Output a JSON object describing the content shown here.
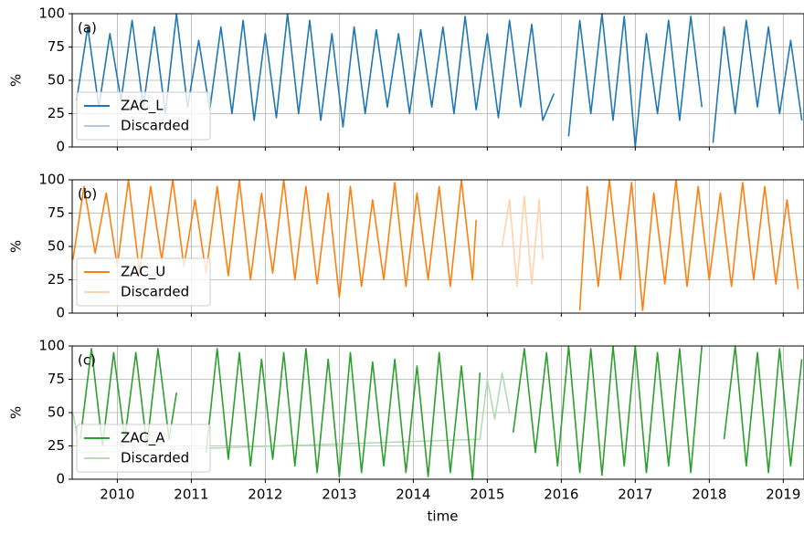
{
  "chart_data": [
    {
      "type": "line",
      "annotation": "(a)",
      "ylabel": "%",
      "xlim": [
        2009.39,
        2019.28
      ],
      "ylim": [
        0,
        100
      ],
      "xticks": [
        2010,
        2011,
        2012,
        2013,
        2014,
        2015,
        2016,
        2017,
        2018,
        2019
      ],
      "yticks": [
        0,
        25,
        50,
        75,
        100
      ],
      "grid": true,
      "legend": "lower left",
      "series": [
        {
          "name": "ZAC_L",
          "color": "#1f77b4",
          "x": [
            2009.45,
            2009.6,
            2009.75,
            2009.9,
            2010.05,
            2010.2,
            2010.35,
            2010.5,
            2010.65,
            2010.8,
            2010.95,
            2011.1,
            2011.25,
            2011.4,
            2011.55,
            2011.7,
            2011.85,
            2012.0,
            2012.15,
            2012.3,
            2012.45,
            2012.6,
            2012.75,
            2012.9,
            2013.05,
            2013.2,
            2013.35,
            2013.5,
            2013.65,
            2013.8,
            2013.95,
            2014.1,
            2014.25,
            2014.4,
            2014.55,
            2014.7,
            2014.85,
            2015.0,
            2015.15,
            2015.3,
            2015.45,
            2015.6,
            2015.75,
            2015.9,
            2016.0,
            2016.1,
            2016.25,
            2016.4,
            2016.55,
            2016.7,
            2016.85,
            2017.0,
            2017.15,
            2017.3,
            2017.45,
            2017.6,
            2017.75,
            2017.9,
            2017.98,
            2018.05,
            2018.2,
            2018.35,
            2018.5,
            2018.65,
            2018.8,
            2018.95,
            2019.1,
            2019.25
          ],
          "values": [
            35,
            90,
            30,
            85,
            35,
            95,
            30,
            90,
            25,
            100,
            30,
            80,
            28,
            90,
            25,
            95,
            20,
            85,
            22,
            100,
            25,
            95,
            20,
            85,
            15,
            90,
            25,
            88,
            30,
            85,
            25,
            88,
            30,
            90,
            25,
            98,
            28,
            85,
            22,
            95,
            30,
            92,
            20,
            40,
            null,
            8,
            95,
            25,
            100,
            20,
            98,
            0,
            85,
            25,
            95,
            20,
            98,
            30,
            null,
            3,
            90,
            25,
            95,
            30,
            90,
            25,
            80,
            20
          ]
        },
        {
          "name": "Discarded",
          "color": "#aec7e8",
          "x": [],
          "values": []
        }
      ]
    },
    {
      "type": "line",
      "annotation": "(b)",
      "ylabel": "%",
      "xlim": [
        2009.39,
        2019.28
      ],
      "ylim": [
        0,
        100
      ],
      "xticks": [
        2010,
        2011,
        2012,
        2013,
        2014,
        2015,
        2016,
        2017,
        2018,
        2019
      ],
      "yticks": [
        0,
        25,
        50,
        75,
        100
      ],
      "grid": true,
      "legend": "lower left",
      "series": [
        {
          "name": "ZAC_U",
          "color": "#ff7f0e",
          "x": [
            2009.4,
            2009.55,
            2009.7,
            2009.85,
            2010.0,
            2010.15,
            2010.3,
            2010.45,
            2010.6,
            2010.75,
            2010.9,
            2011.05,
            2011.2,
            2011.35,
            2011.5,
            2011.65,
            2011.8,
            2011.95,
            2012.1,
            2012.25,
            2012.4,
            2012.55,
            2012.7,
            2012.85,
            2013.0,
            2013.15,
            2013.3,
            2013.45,
            2013.6,
            2013.75,
            2013.9,
            2014.05,
            2014.2,
            2014.35,
            2014.5,
            2014.65,
            2014.8,
            2014.85,
            2016.0,
            2016.25,
            2016.35,
            2016.5,
            2016.65,
            2016.8,
            2016.95,
            2017.1,
            2017.25,
            2017.4,
            2017.55,
            2017.7,
            2017.85,
            2018.0,
            2018.15,
            2018.3,
            2018.45,
            2018.6,
            2018.75,
            2018.9,
            2019.05,
            2019.2
          ],
          "values": [
            40,
            95,
            45,
            90,
            35,
            100,
            30,
            95,
            40,
            100,
            35,
            85,
            30,
            95,
            28,
            100,
            25,
            90,
            30,
            100,
            25,
            95,
            22,
            90,
            12,
            95,
            20,
            85,
            25,
            98,
            20,
            90,
            25,
            95,
            20,
            100,
            25,
            70,
            null,
            2,
            95,
            20,
            100,
            25,
            98,
            2,
            90,
            22,
            100,
            20,
            95,
            25,
            90,
            20,
            98,
            25,
            95,
            22,
            85,
            18
          ]
        },
        {
          "name": "Discarded",
          "color": "#ffd3ae",
          "x": [
            2015.2,
            2015.3,
            2015.4,
            2015.5,
            2015.6,
            2015.7,
            2015.75
          ],
          "values": [
            50,
            85,
            20,
            88,
            22,
            85,
            40
          ]
        }
      ]
    },
    {
      "type": "line",
      "annotation": "(c)",
      "ylabel": "%",
      "xlabel": "time",
      "xlim": [
        2009.39,
        2019.28
      ],
      "ylim": [
        0,
        100
      ],
      "xticks": [
        2010,
        2011,
        2012,
        2013,
        2014,
        2015,
        2016,
        2017,
        2018,
        2019
      ],
      "yticks": [
        0,
        25,
        50,
        75,
        100
      ],
      "grid": true,
      "legend": "lower left",
      "series": [
        {
          "name": "ZAC_A",
          "color": "#2ca02c",
          "x": [
            2009.5,
            2009.65,
            2009.8,
            2009.95,
            2010.1,
            2010.25,
            2010.4,
            2010.55,
            2010.7,
            2010.8,
            2011.0,
            2011.2,
            2011.35,
            2011.5,
            2011.65,
            2011.8,
            2011.95,
            2012.1,
            2012.25,
            2012.4,
            2012.55,
            2012.7,
            2012.85,
            2013.0,
            2013.15,
            2013.3,
            2013.45,
            2013.6,
            2013.75,
            2013.9,
            2014.05,
            2014.2,
            2014.35,
            2014.5,
            2014.65,
            2014.8,
            2014.9,
            2015.2,
            2015.35,
            2015.5,
            2015.65,
            2015.8,
            2015.95,
            2016.1,
            2016.25,
            2016.4,
            2016.55,
            2016.7,
            2016.85,
            2017.0,
            2017.15,
            2017.3,
            2017.45,
            2017.6,
            2017.75,
            2017.9,
            2018.05,
            2018.2,
            2018.35,
            2018.5,
            2018.65,
            2018.8,
            2018.95,
            2019.1,
            2019.25
          ],
          "values": [
            30,
            98,
            25,
            95,
            30,
            95,
            25,
            98,
            30,
            65,
            null,
            20,
            98,
            15,
            95,
            10,
            90,
            15,
            95,
            10,
            98,
            5,
            90,
            2,
            95,
            5,
            88,
            10,
            90,
            5,
            85,
            2,
            95,
            5,
            85,
            0,
            80,
            null,
            35,
            98,
            20,
            95,
            10,
            100,
            5,
            98,
            3,
            100,
            10,
            100,
            5,
            95,
            10,
            98,
            5,
            100,
            null,
            30,
            100,
            10,
            95,
            5,
            98,
            10,
            90
          ]
        },
        {
          "name": "Discarded",
          "color": "#b4dcb4",
          "x": [
            2009.4,
            2009.5,
            2014.9,
            2015.0,
            2015.1,
            2015.2,
            2015.3
          ],
          "values": [
            50,
            20,
            30,
            75,
            45,
            80,
            50
          ]
        }
      ]
    }
  ]
}
